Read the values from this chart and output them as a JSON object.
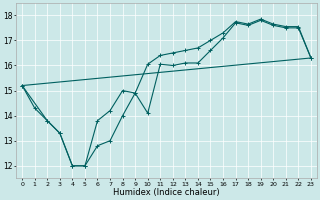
{
  "xlabel": "Humidex (Indice chaleur)",
  "bg_color": "#cce8e8",
  "line_color": "#006060",
  "xlim": [
    -0.5,
    23.5
  ],
  "ylim": [
    11.5,
    18.5
  ],
  "xticks": [
    0,
    1,
    2,
    3,
    4,
    5,
    6,
    7,
    8,
    9,
    10,
    11,
    12,
    13,
    14,
    15,
    16,
    17,
    18,
    19,
    20,
    21,
    22,
    23
  ],
  "yticks": [
    12,
    13,
    14,
    15,
    16,
    17,
    18
  ],
  "line1_x": [
    0,
    1,
    2,
    3,
    4,
    5,
    6,
    7,
    8,
    9,
    10,
    11,
    12,
    13,
    14,
    15,
    16,
    17,
    18,
    19,
    20,
    21,
    22,
    23
  ],
  "line1_y": [
    15.2,
    14.3,
    13.8,
    13.3,
    12.0,
    12.0,
    12.8,
    13.0,
    14.0,
    14.9,
    14.1,
    16.05,
    16.0,
    16.1,
    16.1,
    16.6,
    17.1,
    17.7,
    17.6,
    17.8,
    17.6,
    17.5,
    17.5,
    16.3
  ],
  "line2_x": [
    0,
    2,
    3,
    4,
    5,
    6,
    7,
    8,
    9,
    10,
    11,
    12,
    13,
    14,
    15,
    16,
    17,
    18,
    19,
    20,
    21,
    22,
    23
  ],
  "line2_y": [
    15.2,
    13.8,
    13.3,
    12.0,
    12.0,
    13.8,
    14.2,
    15.0,
    14.9,
    16.05,
    16.4,
    16.5,
    16.6,
    16.7,
    17.0,
    17.3,
    17.75,
    17.65,
    17.85,
    17.65,
    17.55,
    17.55,
    16.3
  ],
  "line3_x": [
    0,
    23
  ],
  "line3_y": [
    15.2,
    16.3
  ]
}
